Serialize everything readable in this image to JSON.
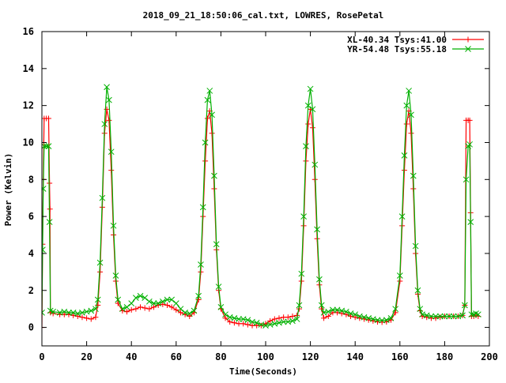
{
  "chart_data": {
    "type": "line",
    "title": "2018_09_21_18:50:06_cal.txt, LOWRES, RosePetal",
    "xlabel": "Time(Seconds)",
    "ylabel": "Power (Kelvin)",
    "xlim": [
      0,
      200
    ],
    "ylim": [
      -1,
      16
    ],
    "xticks": [
      0,
      20,
      40,
      60,
      80,
      100,
      120,
      140,
      160,
      180,
      200
    ],
    "yticks": [
      0,
      2,
      4,
      6,
      8,
      10,
      12,
      14,
      16
    ],
    "xtick_labels": [
      "0",
      "20",
      "40",
      "60",
      "80",
      "100",
      "120",
      "140",
      "160",
      "180",
      "200"
    ],
    "ytick_labels": [
      "0",
      "2",
      "4",
      "6",
      "8",
      "10",
      "12",
      "14",
      "16"
    ],
    "grid": false,
    "legend_position": "top-right",
    "series": [
      {
        "name": "XL-40.34 Tsys:41.00",
        "color": "#ff0000",
        "marker": "plus",
        "points": [
          [
            0,
            0.0
          ],
          [
            0.3,
            4.5
          ],
          [
            0.6,
            8.0
          ],
          [
            1,
            11.3
          ],
          [
            2,
            11.3
          ],
          [
            3,
            11.3
          ],
          [
            3.4,
            7.8
          ],
          [
            3.6,
            6.4
          ],
          [
            3.8,
            0.8
          ],
          [
            5,
            0.75
          ],
          [
            8,
            0.7
          ],
          [
            10,
            0.7
          ],
          [
            12,
            0.7
          ],
          [
            14,
            0.65
          ],
          [
            16,
            0.6
          ],
          [
            18,
            0.55
          ],
          [
            20,
            0.5
          ],
          [
            22,
            0.45
          ],
          [
            24,
            0.55
          ],
          [
            25,
            1.2
          ],
          [
            26,
            3.0
          ],
          [
            27,
            6.5
          ],
          [
            28,
            10.5
          ],
          [
            29,
            11.8
          ],
          [
            30,
            11.2
          ],
          [
            31,
            8.5
          ],
          [
            32,
            5.0
          ],
          [
            33,
            2.5
          ],
          [
            34,
            1.3
          ],
          [
            36,
            0.9
          ],
          [
            38,
            0.85
          ],
          [
            40,
            0.95
          ],
          [
            42,
            1.0
          ],
          [
            44,
            1.1
          ],
          [
            46,
            1.05
          ],
          [
            48,
            1.0
          ],
          [
            50,
            1.1
          ],
          [
            52,
            1.2
          ],
          [
            54,
            1.25
          ],
          [
            56,
            1.2
          ],
          [
            58,
            1.1
          ],
          [
            60,
            0.95
          ],
          [
            62,
            0.8
          ],
          [
            64,
            0.7
          ],
          [
            66,
            0.6
          ],
          [
            68,
            0.8
          ],
          [
            70,
            1.5
          ],
          [
            71,
            3.0
          ],
          [
            72,
            6.0
          ],
          [
            73,
            9.0
          ],
          [
            74,
            11.3
          ],
          [
            75,
            11.7
          ],
          [
            76,
            10.5
          ],
          [
            77,
            7.5
          ],
          [
            78,
            4.2
          ],
          [
            79,
            2.0
          ],
          [
            80,
            1.0
          ],
          [
            82,
            0.5
          ],
          [
            84,
            0.3
          ],
          [
            86,
            0.25
          ],
          [
            88,
            0.2
          ],
          [
            90,
            0.2
          ],
          [
            92,
            0.15
          ],
          [
            94,
            0.1
          ],
          [
            96,
            0.1
          ],
          [
            98,
            0.1
          ],
          [
            100,
            0.2
          ],
          [
            102,
            0.35
          ],
          [
            104,
            0.45
          ],
          [
            106,
            0.5
          ],
          [
            108,
            0.55
          ],
          [
            110,
            0.55
          ],
          [
            112,
            0.6
          ],
          [
            114,
            0.65
          ],
          [
            115,
            1.0
          ],
          [
            116,
            2.5
          ],
          [
            117,
            5.5
          ],
          [
            118,
            9.0
          ],
          [
            119,
            11.0
          ],
          [
            120,
            11.8
          ],
          [
            121,
            10.8
          ],
          [
            122,
            8.0
          ],
          [
            123,
            4.8
          ],
          [
            124,
            2.3
          ],
          [
            125,
            1.0
          ],
          [
            126,
            0.5
          ],
          [
            128,
            0.6
          ],
          [
            130,
            0.8
          ],
          [
            132,
            0.8
          ],
          [
            134,
            0.75
          ],
          [
            136,
            0.7
          ],
          [
            138,
            0.6
          ],
          [
            140,
            0.55
          ],
          [
            142,
            0.5
          ],
          [
            144,
            0.45
          ],
          [
            146,
            0.4
          ],
          [
            148,
            0.35
          ],
          [
            150,
            0.3
          ],
          [
            152,
            0.28
          ],
          [
            154,
            0.3
          ],
          [
            156,
            0.4
          ],
          [
            158,
            0.8
          ],
          [
            160,
            2.5
          ],
          [
            161,
            5.5
          ],
          [
            162,
            8.5
          ],
          [
            163,
            11.0
          ],
          [
            164,
            11.7
          ],
          [
            165,
            10.5
          ],
          [
            166,
            7.5
          ],
          [
            167,
            4.0
          ],
          [
            168,
            1.8
          ],
          [
            169,
            0.9
          ],
          [
            170,
            0.6
          ],
          [
            172,
            0.55
          ],
          [
            174,
            0.5
          ],
          [
            176,
            0.5
          ],
          [
            178,
            0.55
          ],
          [
            180,
            0.6
          ],
          [
            182,
            0.6
          ],
          [
            184,
            0.6
          ],
          [
            186,
            0.6
          ],
          [
            188,
            0.65
          ],
          [
            189,
            1.2
          ],
          [
            189.6,
            11.2
          ],
          [
            190.5,
            11.2
          ],
          [
            191.2,
            11.2
          ],
          [
            191.6,
            6.2
          ],
          [
            192,
            0.6
          ],
          [
            193,
            0.6
          ],
          [
            194,
            0.65
          ],
          [
            195,
            0.6
          ]
        ]
      },
      {
        "name": "YR-54.48 Tsys:55.18",
        "color": "#00b000",
        "marker": "cross",
        "points": [
          [
            0,
            0.8
          ],
          [
            0.3,
            4.2
          ],
          [
            0.6,
            7.5
          ],
          [
            1,
            9.8
          ],
          [
            2,
            9.8
          ],
          [
            3,
            9.8
          ],
          [
            3.4,
            5.7
          ],
          [
            3.8,
            0.9
          ],
          [
            5,
            0.85
          ],
          [
            8,
            0.8
          ],
          [
            10,
            0.85
          ],
          [
            12,
            0.8
          ],
          [
            14,
            0.8
          ],
          [
            16,
            0.75
          ],
          [
            18,
            0.8
          ],
          [
            20,
            0.85
          ],
          [
            22,
            0.9
          ],
          [
            24,
            1.0
          ],
          [
            25,
            1.5
          ],
          [
            26,
            3.5
          ],
          [
            27,
            7.0
          ],
          [
            28,
            11.0
          ],
          [
            29,
            13.0
          ],
          [
            30,
            12.3
          ],
          [
            31,
            9.5
          ],
          [
            32,
            5.5
          ],
          [
            33,
            2.8
          ],
          [
            34,
            1.5
          ],
          [
            36,
            1.0
          ],
          [
            38,
            1.1
          ],
          [
            40,
            1.3
          ],
          [
            42,
            1.6
          ],
          [
            44,
            1.7
          ],
          [
            46,
            1.6
          ],
          [
            48,
            1.4
          ],
          [
            50,
            1.3
          ],
          [
            52,
            1.3
          ],
          [
            54,
            1.4
          ],
          [
            56,
            1.5
          ],
          [
            58,
            1.5
          ],
          [
            60,
            1.3
          ],
          [
            62,
            1.0
          ],
          [
            64,
            0.8
          ],
          [
            66,
            0.75
          ],
          [
            68,
            0.9
          ],
          [
            70,
            1.7
          ],
          [
            71,
            3.4
          ],
          [
            72,
            6.5
          ],
          [
            73,
            10.0
          ],
          [
            74,
            12.3
          ],
          [
            75,
            12.8
          ],
          [
            76,
            11.5
          ],
          [
            77,
            8.2
          ],
          [
            78,
            4.5
          ],
          [
            79,
            2.2
          ],
          [
            80,
            1.1
          ],
          [
            82,
            0.7
          ],
          [
            84,
            0.55
          ],
          [
            86,
            0.5
          ],
          [
            88,
            0.45
          ],
          [
            90,
            0.45
          ],
          [
            92,
            0.4
          ],
          [
            94,
            0.3
          ],
          [
            96,
            0.25
          ],
          [
            98,
            0.15
          ],
          [
            100,
            0.1
          ],
          [
            102,
            0.15
          ],
          [
            104,
            0.2
          ],
          [
            106,
            0.25
          ],
          [
            108,
            0.3
          ],
          [
            110,
            0.3
          ],
          [
            112,
            0.35
          ],
          [
            114,
            0.45
          ],
          [
            115,
            1.2
          ],
          [
            116,
            2.9
          ],
          [
            117,
            6.0
          ],
          [
            118,
            9.8
          ],
          [
            119,
            12.0
          ],
          [
            120,
            12.9
          ],
          [
            121,
            11.8
          ],
          [
            122,
            8.8
          ],
          [
            123,
            5.3
          ],
          [
            124,
            2.6
          ],
          [
            125,
            1.2
          ],
          [
            126,
            0.8
          ],
          [
            128,
            0.85
          ],
          [
            130,
            0.95
          ],
          [
            132,
            0.95
          ],
          [
            134,
            0.9
          ],
          [
            136,
            0.85
          ],
          [
            138,
            0.75
          ],
          [
            140,
            0.7
          ],
          [
            142,
            0.6
          ],
          [
            144,
            0.55
          ],
          [
            146,
            0.5
          ],
          [
            148,
            0.45
          ],
          [
            150,
            0.4
          ],
          [
            152,
            0.38
          ],
          [
            154,
            0.4
          ],
          [
            156,
            0.5
          ],
          [
            158,
            1.0
          ],
          [
            160,
            2.8
          ],
          [
            161,
            6.0
          ],
          [
            162,
            9.3
          ],
          [
            163,
            12.0
          ],
          [
            164,
            12.8
          ],
          [
            165,
            11.5
          ],
          [
            166,
            8.2
          ],
          [
            167,
            4.4
          ],
          [
            168,
            2.0
          ],
          [
            169,
            1.0
          ],
          [
            170,
            0.7
          ],
          [
            172,
            0.65
          ],
          [
            174,
            0.6
          ],
          [
            176,
            0.6
          ],
          [
            178,
            0.6
          ],
          [
            180,
            0.6
          ],
          [
            182,
            0.6
          ],
          [
            184,
            0.6
          ],
          [
            186,
            0.6
          ],
          [
            188,
            0.65
          ],
          [
            189,
            1.2
          ],
          [
            189.6,
            8.0
          ],
          [
            190.5,
            9.8
          ],
          [
            191.2,
            9.9
          ],
          [
            191.6,
            5.7
          ],
          [
            192,
            0.7
          ],
          [
            193,
            0.7
          ],
          [
            194,
            0.75
          ],
          [
            195,
            0.7
          ]
        ]
      }
    ]
  }
}
